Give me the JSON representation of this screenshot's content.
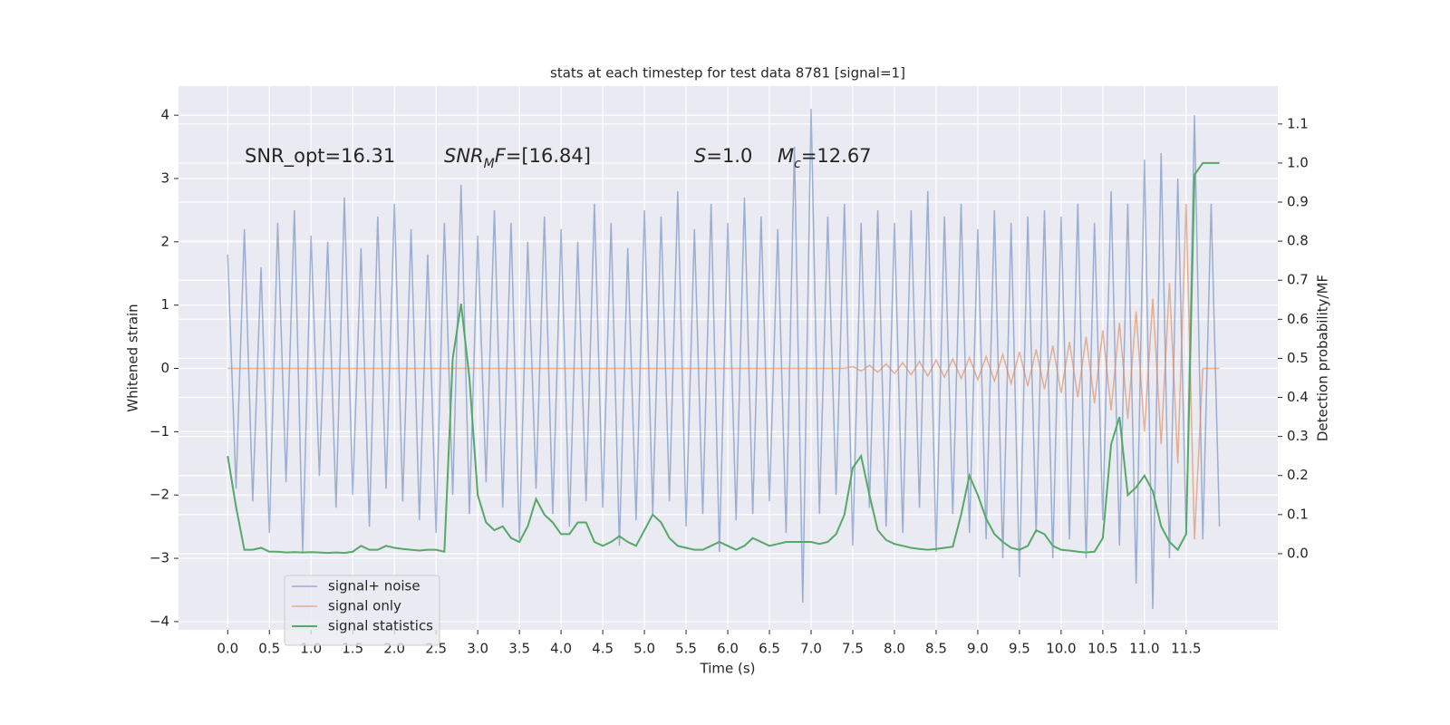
{
  "chart_data": {
    "type": "line",
    "title": "stats at each timestep for test data 8781 [signal=1]",
    "x_label": "Time (s)",
    "y_label": "Whitened strain",
    "y2_label": "Detection probability/MF",
    "annotations": [
      [
        {
          "t": "SNR_opt=16.31"
        }
      ],
      [
        {
          "t": "SNR",
          "italic": true
        },
        {
          "t": "M",
          "italic": true,
          "sub": true
        },
        {
          "t": "F",
          "italic": true
        },
        {
          "t": "=[16.84]"
        }
      ],
      [
        {
          "t": "S",
          "italic": true
        },
        {
          "t": "=1.0"
        }
      ],
      [
        {
          "t": "M",
          "italic": true
        },
        {
          "t": "c",
          "italic": true,
          "sub": true
        },
        {
          "t": "=12.67"
        }
      ]
    ],
    "grid": true,
    "legend": "lower left",
    "xlim": [
      -0.59,
      12.6
    ],
    "ylim": [
      -4.13,
      4.46
    ],
    "y2lim": [
      -0.195,
      1.197
    ],
    "xticks": [
      {
        "value": 0,
        "label": "0.0"
      },
      0.5,
      {
        "value": 1,
        "label": "1.0"
      },
      1.5,
      {
        "value": 2,
        "label": "2.0"
      },
      2.5,
      {
        "value": 3,
        "label": "3.0"
      },
      3.5,
      {
        "value": 4,
        "label": "4.0"
      },
      4.5,
      {
        "value": 5,
        "label": "5.0"
      },
      5.5,
      {
        "value": 6,
        "label": "6.0"
      },
      6.5,
      {
        "value": 7,
        "label": "7.0"
      },
      7.5,
      {
        "value": 8,
        "label": "8.0"
      },
      8.5,
      {
        "value": 9,
        "label": "9.0"
      },
      9.5,
      {
        "value": 10,
        "label": "10.0"
      },
      10.5,
      {
        "value": 11,
        "label": "11.0"
      },
      11.5
    ],
    "yticks": [
      {
        "value": -4,
        "label": "−4"
      },
      {
        "value": -3,
        "label": "−3"
      },
      {
        "value": -2,
        "label": "−2"
      },
      {
        "value": -1,
        "label": "−1"
      },
      0,
      1,
      2,
      3,
      4
    ],
    "y2ticks": [
      {
        "value": 0,
        "label": "0.0"
      },
      0.1,
      0.2,
      0.3,
      0.4,
      0.5,
      0.6,
      0.7,
      0.8,
      0.9,
      {
        "value": 1,
        "label": "1.0"
      },
      1.1
    ],
    "x": [
      0,
      0.1,
      0.2,
      0.3,
      0.4,
      0.5,
      0.6,
      0.7,
      0.8,
      0.9,
      1,
      1.1,
      1.2,
      1.3,
      1.4,
      1.5,
      1.6,
      1.7,
      1.8,
      1.9,
      2,
      2.1,
      2.2,
      2.3,
      2.4,
      2.5,
      2.6,
      2.7,
      2.8,
      2.9,
      3,
      3.1,
      3.2,
      3.3,
      3.4,
      3.5,
      3.6,
      3.7,
      3.8,
      3.9,
      4,
      4.1,
      4.2,
      4.3,
      4.4,
      4.5,
      4.6,
      4.7,
      4.8,
      4.9,
      5,
      5.1,
      5.2,
      5.3,
      5.4,
      5.5,
      5.6,
      5.7,
      5.8,
      5.9,
      6,
      6.1,
      6.2,
      6.3,
      6.4,
      6.5,
      6.6,
      6.7,
      6.8,
      6.9,
      7,
      7.1,
      7.2,
      7.3,
      7.4,
      7.5,
      7.6,
      7.7,
      7.8,
      7.9,
      8,
      8.1,
      8.2,
      8.3,
      8.4,
      8.5,
      8.6,
      8.7,
      8.8,
      8.9,
      9,
      9.1,
      9.2,
      9.3,
      9.4,
      9.5,
      9.6,
      9.7,
      9.8,
      9.9,
      10,
      10.1,
      10.2,
      10.3,
      10.4,
      10.5,
      10.6,
      10.7,
      10.8,
      10.9,
      11,
      11.1,
      11.2,
      11.3,
      11.4,
      11.5,
      11.6,
      11.7,
      11.8,
      11.9
    ],
    "series": [
      {
        "name": "signal+ noise",
        "color": "#4c72b0",
        "values": [
          1.8,
          -1.9,
          2.2,
          -2.1,
          1.6,
          -2.6,
          2.3,
          -1.8,
          2.5,
          -2.9,
          2.1,
          -1.7,
          2.0,
          -2.2,
          2.7,
          -2.0,
          1.9,
          -2.5,
          2.4,
          -1.9,
          2.6,
          -2.1,
          2.2,
          -2.4,
          1.8,
          -2.6,
          2.3,
          -2.0,
          2.9,
          -2.3,
          2.1,
          -1.8,
          2.5,
          -2.2,
          2.3,
          -2.7,
          2.0,
          -1.9,
          2.4,
          -2.3,
          2.2,
          -2.5,
          2.0,
          -2.1,
          2.6,
          -2.2,
          2.3,
          -2.8,
          1.9,
          -2.4,
          2.5,
          -2.3,
          2.4,
          -2.1,
          2.8,
          -2.5,
          2.2,
          -2.3,
          2.6,
          -2.9,
          2.3,
          -2.4,
          2.7,
          -2.3,
          2.4,
          -2.1,
          2.2,
          -2.6,
          3.5,
          -3.7,
          4.1,
          -2.3,
          2.4,
          -2.0,
          2.6,
          -2.8,
          2.3,
          -2.2,
          2.5,
          -2.5,
          2.3,
          -2.6,
          2.5,
          -2.2,
          2.8,
          -2.9,
          2.4,
          -2.3,
          2.6,
          -2.6,
          2.2,
          -2.7,
          2.5,
          -3.0,
          2.3,
          -3.3,
          2.4,
          -2.6,
          2.5,
          -3.0,
          2.4,
          -2.7,
          2.6,
          -3.0,
          2.3,
          -2.4,
          2.8,
          -2.8,
          2.6,
          -3.4,
          3.3,
          -3.8,
          3.4,
          -3.0,
          3.0,
          -2.6,
          4.0,
          -2.7,
          2.6,
          -2.5
        ]
      },
      {
        "name": "signal only",
        "color": "#dd8452",
        "values": [
          0,
          0,
          0,
          0,
          0,
          0,
          0,
          0,
          0,
          0,
          0,
          0,
          0,
          0,
          0,
          0,
          0,
          0,
          0,
          0,
          0,
          0,
          0,
          0,
          0,
          0,
          0,
          0,
          0,
          0,
          0,
          0,
          0,
          0,
          0,
          0,
          0,
          0,
          0,
          0,
          0,
          0,
          0,
          0,
          0,
          0,
          0,
          0,
          0,
          0,
          0,
          0,
          0,
          0,
          0,
          0,
          0,
          0,
          0,
          0,
          0,
          0,
          0,
          0,
          0,
          0,
          0,
          0,
          0,
          0,
          0,
          0,
          0,
          0,
          0,
          0.03,
          -0.04,
          0.05,
          -0.06,
          0.07,
          -0.08,
          0.09,
          -0.1,
          0.11,
          -0.12,
          0.13,
          -0.14,
          0.15,
          -0.16,
          0.17,
          -0.18,
          0.19,
          -0.2,
          0.22,
          -0.24,
          0.26,
          -0.28,
          0.3,
          -0.33,
          0.36,
          -0.39,
          0.42,
          -0.46,
          0.5,
          -0.55,
          0.6,
          -0.66,
          0.72,
          -0.8,
          0.9,
          -1.0,
          1.1,
          -1.2,
          1.35,
          -1.5,
          2.6,
          -2.7,
          0,
          0,
          0
        ]
      },
      {
        "name": "signal statistics",
        "color": "#55a868",
        "axis": "y2",
        "values": [
          0.25,
          0.12,
          0.01,
          0.01,
          0.015,
          0.005,
          0.005,
          0.003,
          0.004,
          0.003,
          0.004,
          0.003,
          0.002,
          0.003,
          0.002,
          0.005,
          0.02,
          0.01,
          0.01,
          0.02,
          0.015,
          0.012,
          0.01,
          0.008,
          0.01,
          0.01,
          0.005,
          0.5,
          0.64,
          0.45,
          0.15,
          0.08,
          0.06,
          0.07,
          0.04,
          0.03,
          0.07,
          0.14,
          0.1,
          0.08,
          0.05,
          0.05,
          0.08,
          0.08,
          0.03,
          0.02,
          0.03,
          0.045,
          0.03,
          0.02,
          0.06,
          0.1,
          0.08,
          0.04,
          0.02,
          0.015,
          0.01,
          0.01,
          0.02,
          0.03,
          0.02,
          0.01,
          0.02,
          0.04,
          0.03,
          0.02,
          0.025,
          0.03,
          0.03,
          0.03,
          0.03,
          0.025,
          0.03,
          0.05,
          0.1,
          0.22,
          0.25,
          0.15,
          0.06,
          0.035,
          0.025,
          0.02,
          0.015,
          0.012,
          0.01,
          0.012,
          0.015,
          0.018,
          0.1,
          0.2,
          0.15,
          0.09,
          0.05,
          0.03,
          0.015,
          0.01,
          0.02,
          0.06,
          0.05,
          0.02,
          0.01,
          0.008,
          0.005,
          0.003,
          0.005,
          0.04,
          0.28,
          0.35,
          0.15,
          0.17,
          0.2,
          0.16,
          0.07,
          0.03,
          0.01,
          0.05,
          0.97,
          1.0,
          1.0,
          1.0
        ]
      }
    ]
  }
}
